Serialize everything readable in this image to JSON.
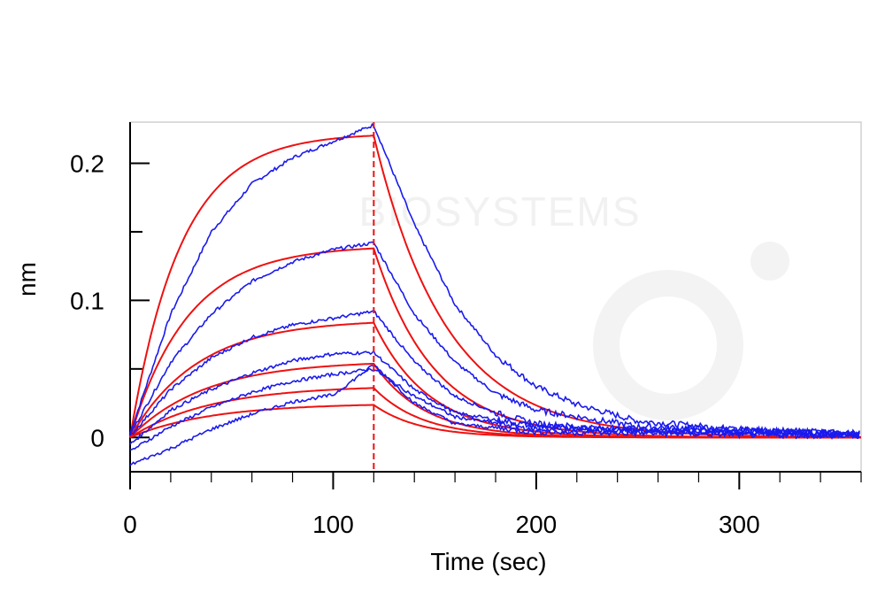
{
  "chart_data": {
    "type": "line",
    "title": "",
    "xlabel": "Time (sec)",
    "ylabel": "nm",
    "xlim": [
      0,
      360
    ],
    "ylim": [
      -0.025,
      0.23
    ],
    "x_ticks": [
      0,
      100,
      200,
      300
    ],
    "x_tick_labels": [
      "0",
      "100",
      "200",
      "300"
    ],
    "y_ticks": [
      0,
      0.1,
      0.2
    ],
    "y_tick_labels": [
      "0",
      "0.1",
      "0.2"
    ],
    "grid": false,
    "legend": "none",
    "dissociation_start": 120,
    "watermark": "BIOSYSTEMS",
    "colors": {
      "measured": "#1a1aee",
      "fit": "#ee1111",
      "marker": "#ee1111"
    },
    "series_measured": [
      {
        "values_at": {
          "0": 0.003,
          "20": 0.09,
          "40": 0.15,
          "60": 0.185,
          "80": 0.204,
          "100": 0.216,
          "120": 0.228,
          "140": 0.155,
          "160": 0.097,
          "180": 0.06,
          "200": 0.037,
          "220": 0.024,
          "250": 0.012,
          "300": 0.006,
          "360": 0.003
        }
      },
      {
        "values_at": {
          "0": 0.002,
          "20": 0.055,
          "40": 0.09,
          "60": 0.114,
          "80": 0.128,
          "100": 0.137,
          "120": 0.142,
          "140": 0.09,
          "160": 0.055,
          "180": 0.032,
          "200": 0.02,
          "250": 0.008,
          "360": 0.003
        }
      },
      {
        "values_at": {
          "0": 0.001,
          "20": 0.035,
          "40": 0.058,
          "60": 0.073,
          "80": 0.082,
          "100": 0.087,
          "120": 0.092,
          "140": 0.055,
          "160": 0.03,
          "180": 0.018,
          "200": 0.01,
          "250": 0.005,
          "360": 0.002
        }
      },
      {
        "values_at": {
          "0": -0.005,
          "20": 0.02,
          "40": 0.035,
          "60": 0.047,
          "80": 0.056,
          "100": 0.061,
          "120": 0.062,
          "140": 0.035,
          "160": 0.018,
          "200": 0.008,
          "360": 0.002
        }
      },
      {
        "values_at": {
          "0": -0.01,
          "20": 0.008,
          "40": 0.022,
          "60": 0.033,
          "80": 0.041,
          "100": 0.046,
          "120": 0.05,
          "140": 0.03,
          "160": 0.015,
          "200": 0.006,
          "360": 0.002
        }
      },
      {
        "values_at": {
          "0": -0.02,
          "20": -0.008,
          "40": 0.006,
          "60": 0.017,
          "80": 0.026,
          "100": 0.031,
          "120": 0.053,
          "140": 0.025,
          "160": 0.01,
          "200": 0.004,
          "360": 0.001
        }
      }
    ],
    "series_fit": [
      {
        "plateau": 0.222,
        "assoc_rate": 0.04,
        "dissoc_rate": 0.028
      },
      {
        "plateau": 0.14,
        "assoc_rate": 0.035,
        "dissoc_rate": 0.034
      },
      {
        "plateau": 0.086,
        "assoc_rate": 0.03,
        "dissoc_rate": 0.037
      },
      {
        "plateau": 0.056,
        "assoc_rate": 0.027,
        "dissoc_rate": 0.04
      },
      {
        "plateau": 0.038,
        "assoc_rate": 0.025,
        "dissoc_rate": 0.042
      },
      {
        "plateau": 0.025,
        "assoc_rate": 0.025,
        "dissoc_rate": 0.044
      }
    ]
  }
}
